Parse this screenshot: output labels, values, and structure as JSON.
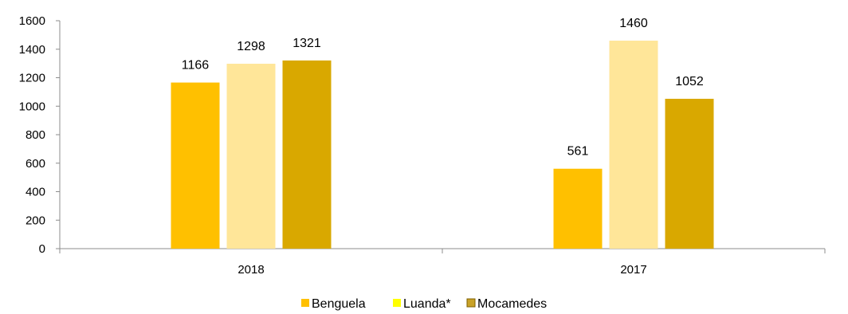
{
  "chart_data": {
    "type": "bar",
    "title": "",
    "xlabel": "",
    "ylabel": "",
    "categories": [
      "2018",
      "2017"
    ],
    "series": [
      {
        "name": "Benguela",
        "values": [
          1166,
          561
        ],
        "color": "#ffc000"
      },
      {
        "name": "Luanda*",
        "values": [
          1298,
          1460
        ],
        "color": "#ffe699"
      },
      {
        "name": "Mocamedes",
        "values": [
          1321,
          1052
        ],
        "color": "#d9a800"
      }
    ],
    "legend_swatch_colors": [
      "#ffc000",
      "#ffff00",
      "#c9a227"
    ],
    "ylim": [
      0,
      1600
    ],
    "yticks": [
      0,
      200,
      400,
      600,
      800,
      1000,
      1200,
      1400,
      1600
    ],
    "grid": false,
    "legend": "bottom-center"
  }
}
